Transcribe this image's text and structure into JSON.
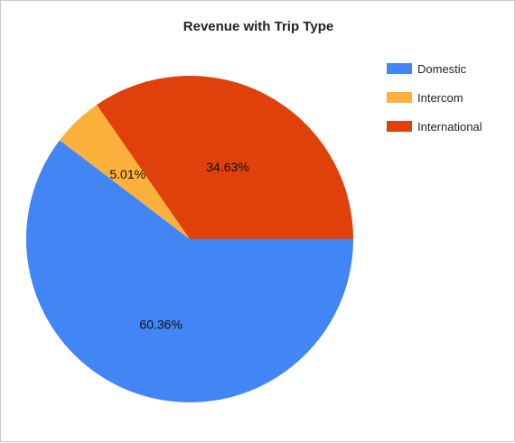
{
  "chart_data": {
    "type": "pie",
    "title": "Revenue with Trip Type",
    "slices": [
      {
        "label": "Domestic",
        "value": 60.36,
        "value_label": "60.36%",
        "color": "#4285f4"
      },
      {
        "label": "Intercom",
        "value": 5.01,
        "value_label": "5.01%",
        "color": "#fbb13c"
      },
      {
        "label": "International",
        "value": 34.63,
        "value_label": "34.63%",
        "color": "#e0410b"
      }
    ],
    "legend_position": "right"
  }
}
